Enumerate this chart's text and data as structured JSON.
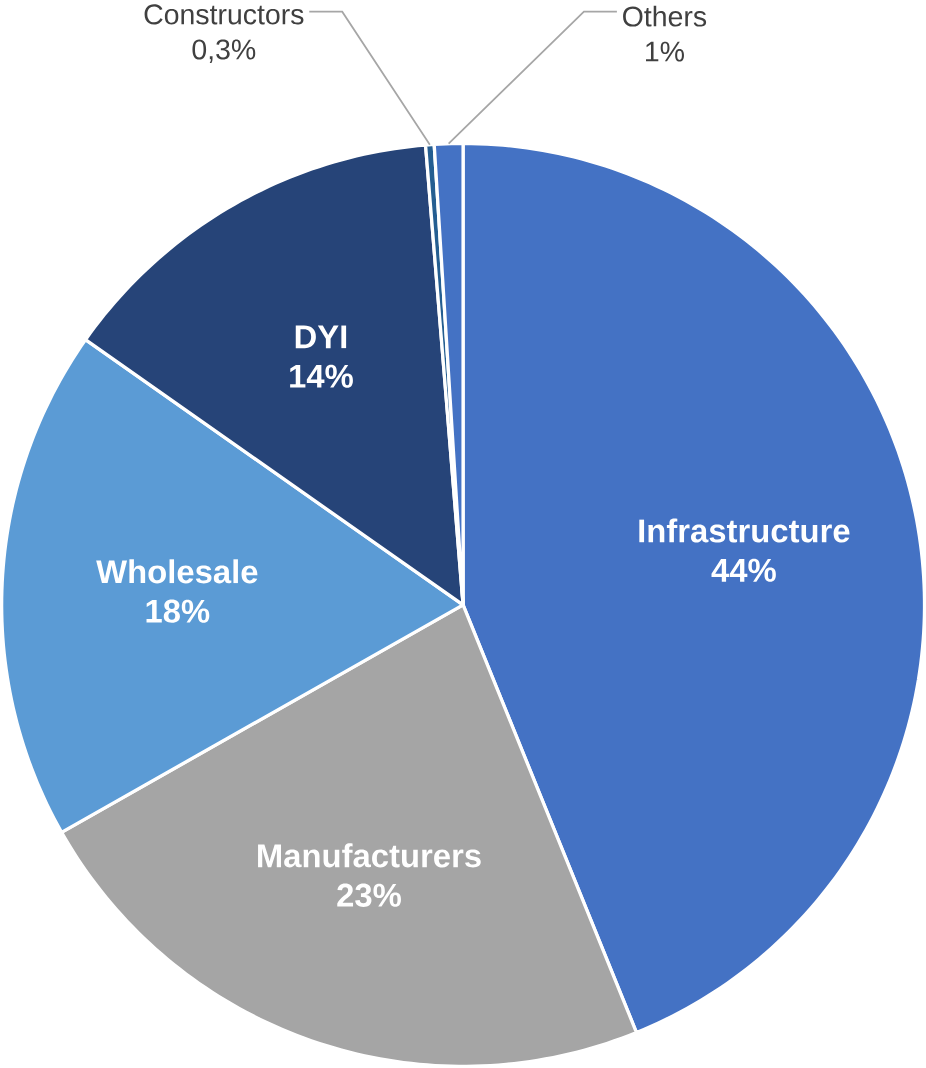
{
  "chart_data": {
    "type": "pie",
    "categories": [
      "Infrastructure",
      "Manufacturers",
      "Wholesale",
      "DYI",
      "Constructors",
      "Others"
    ],
    "values": [
      44,
      23,
      18,
      14,
      0.3,
      1
    ],
    "value_labels": [
      "44%",
      "23%",
      "18%",
      "14%",
      "0,3%",
      "1%"
    ],
    "colors": [
      "#4472c4",
      "#a5a5a5",
      "#5b9bd5",
      "#264478",
      "#255e91",
      "#4472c4"
    ]
  }
}
